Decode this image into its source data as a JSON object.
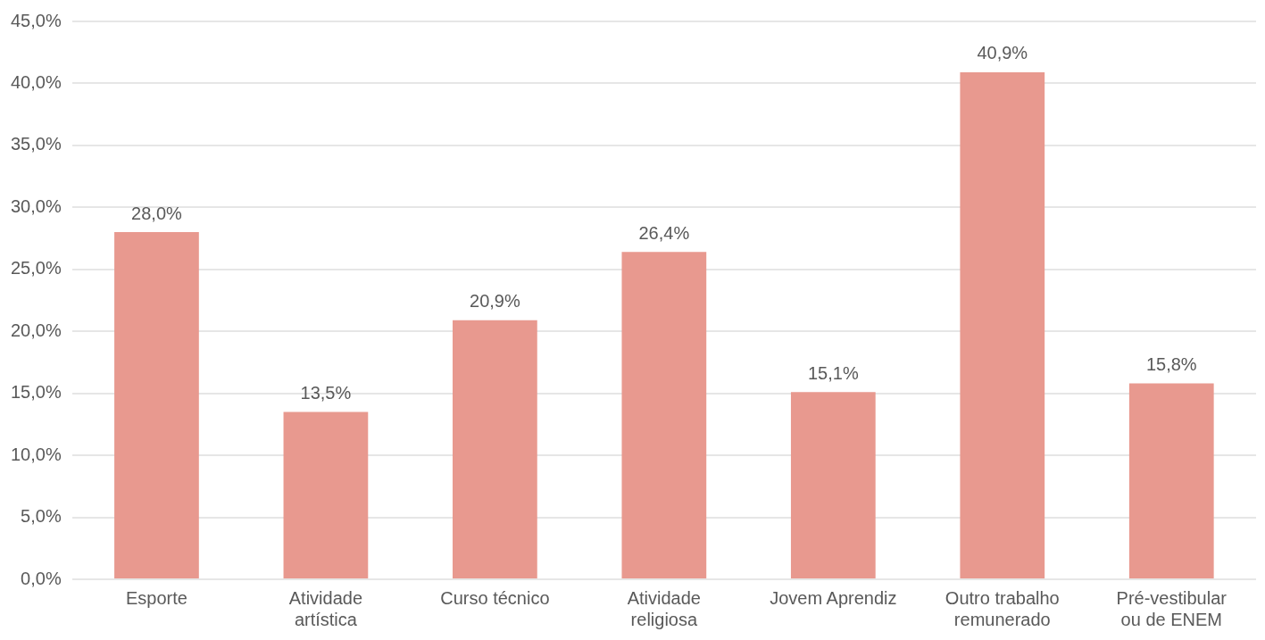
{
  "chart_data": {
    "type": "bar",
    "categories": [
      "Esporte",
      "Atividade artística",
      "Curso técnico",
      "Atividade religiosa",
      "Jovem Aprendiz",
      "Outro trabalho remunerado",
      "Pré-vestibular ou de ENEM"
    ],
    "values": [
      28.0,
      13.5,
      20.9,
      26.4,
      15.1,
      40.9,
      15.8
    ],
    "value_labels": [
      "28,0%",
      "13,5%",
      "20,9%",
      "26,4%",
      "15,1%",
      "40,9%",
      "15,8%"
    ],
    "color": "#e8998f",
    "ylim": [
      0,
      45
    ],
    "yticks": [
      {
        "value": 0,
        "label": "0,0%"
      },
      {
        "value": 5,
        "label": "5,0%"
      },
      {
        "value": 10,
        "label": "10,0%"
      },
      {
        "value": 15,
        "label": "15,0%"
      },
      {
        "value": 20,
        "label": "20,0%"
      },
      {
        "value": 25,
        "label": "25,0%"
      },
      {
        "value": 30,
        "label": "30,0%"
      },
      {
        "value": 35,
        "label": "35,0%"
      },
      {
        "value": 40,
        "label": "40,0%"
      },
      {
        "value": 45,
        "label": "45,0%"
      }
    ],
    "grid": "y"
  }
}
